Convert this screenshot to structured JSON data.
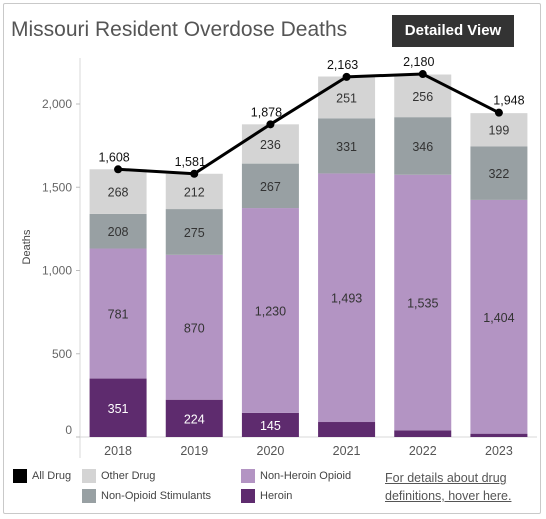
{
  "title": "Missouri Resident Overdose Deaths",
  "detailed_view_label": "Detailed View",
  "details_link": {
    "line1": "For details about drug",
    "line2": "definitions, hover here."
  },
  "legend": [
    {
      "key": "all",
      "label": "All Drug",
      "color": "#000000"
    },
    {
      "key": "other",
      "label": "Other Drug",
      "color": "#d4d4d4"
    },
    {
      "key": "nonheroin",
      "label": "Non-Heroin Opioid",
      "color": "#b394c3"
    },
    {
      "key": "stim",
      "label": "Non-Opioid Stimulants",
      "color": "#98a0a3"
    },
    {
      "key": "heroin",
      "label": "Heroin",
      "color": "#5e2b6e"
    }
  ],
  "chart_data": {
    "type": "bar",
    "stacked": true,
    "title": "Missouri Resident Overdose Deaths",
    "ylabel": "Deaths",
    "ylim": [
      0,
      2300
    ],
    "yticks": [
      0,
      500,
      1000,
      1500,
      2000
    ],
    "ytick_labels": [
      "0",
      "500",
      "1,000",
      "1,500",
      "2,000"
    ],
    "categories": [
      "2018",
      "2019",
      "2020",
      "2021",
      "2022",
      "2023"
    ],
    "series": [
      {
        "name": "Heroin",
        "color": "#5e2b6e",
        "values": [
          351,
          224,
          145,
          90,
          40,
          20
        ],
        "labels": [
          "351",
          "224",
          "145",
          "",
          "",
          ""
        ]
      },
      {
        "name": "Non-Heroin Opioid",
        "color": "#b394c3",
        "values": [
          781,
          870,
          1230,
          1493,
          1535,
          1404
        ],
        "labels": [
          "781",
          "870",
          "1,230",
          "1,493",
          "1,535",
          "1,404"
        ]
      },
      {
        "name": "Non-Opioid Stimulants",
        "color": "#98a0a3",
        "values": [
          208,
          275,
          267,
          331,
          346,
          322
        ],
        "labels": [
          "208",
          "275",
          "267",
          "331",
          "346",
          "322"
        ]
      },
      {
        "name": "Other Drug",
        "color": "#d4d4d4",
        "values": [
          268,
          212,
          236,
          251,
          256,
          199
        ],
        "labels": [
          "268",
          "212",
          "236",
          "251",
          "256",
          "199"
        ]
      }
    ],
    "line": {
      "name": "All Drug",
      "color": "#000000",
      "values": [
        1608,
        1581,
        1878,
        2163,
        2180,
        1948
      ],
      "labels": [
        "1,608",
        "1,581",
        "1,878",
        "2,163",
        "2,180",
        "1,948"
      ]
    },
    "grid": false,
    "legend_position": "bottom"
  }
}
